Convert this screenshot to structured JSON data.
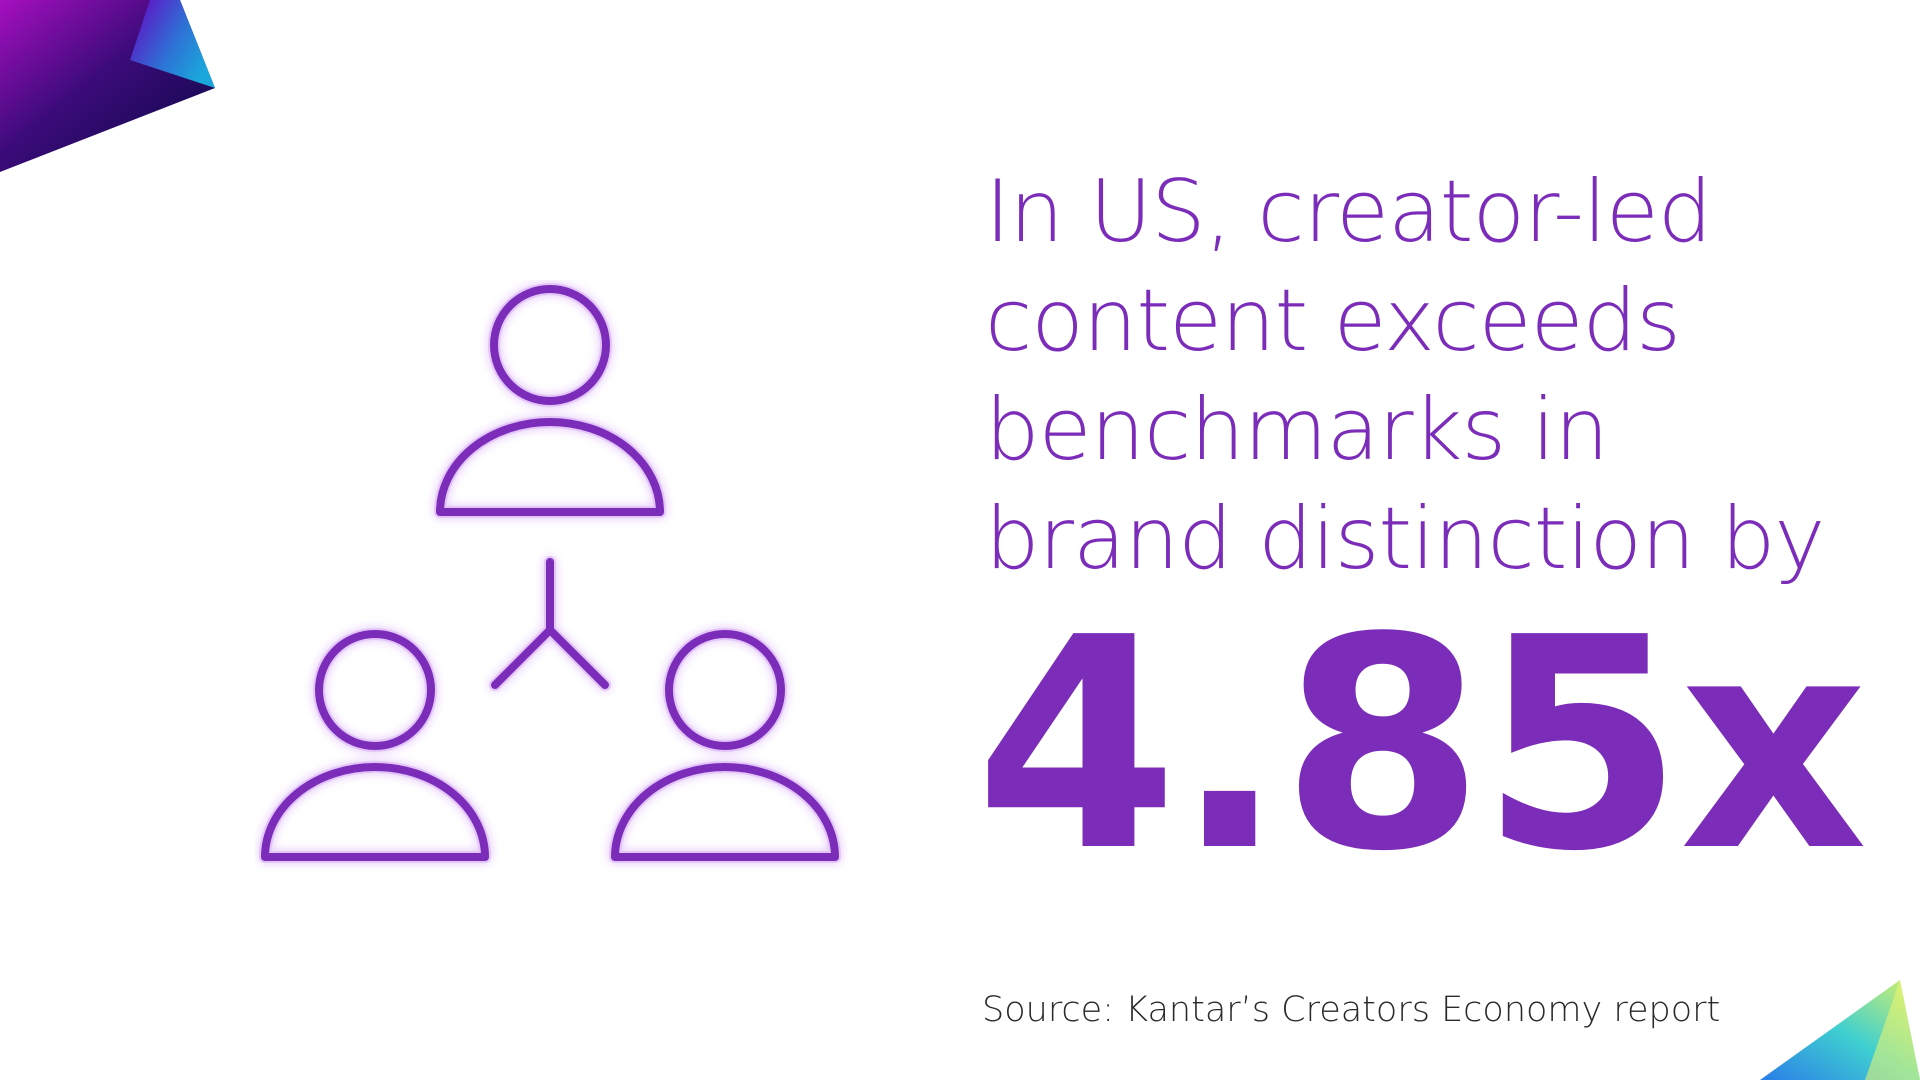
{
  "headline": {
    "lines": [
      "In US, creator-led",
      "content exceeds",
      "benchmarks in",
      "brand distinction by"
    ]
  },
  "stat": {
    "value": "4.85x"
  },
  "source": {
    "text": "Source: Kantar’s Creators Economy report"
  },
  "illustration": {
    "icon": "people-network-icon"
  },
  "colors": {
    "accent": "#7b2dba",
    "glow": "#b15cf0",
    "source_text": "#2a2a2a"
  }
}
